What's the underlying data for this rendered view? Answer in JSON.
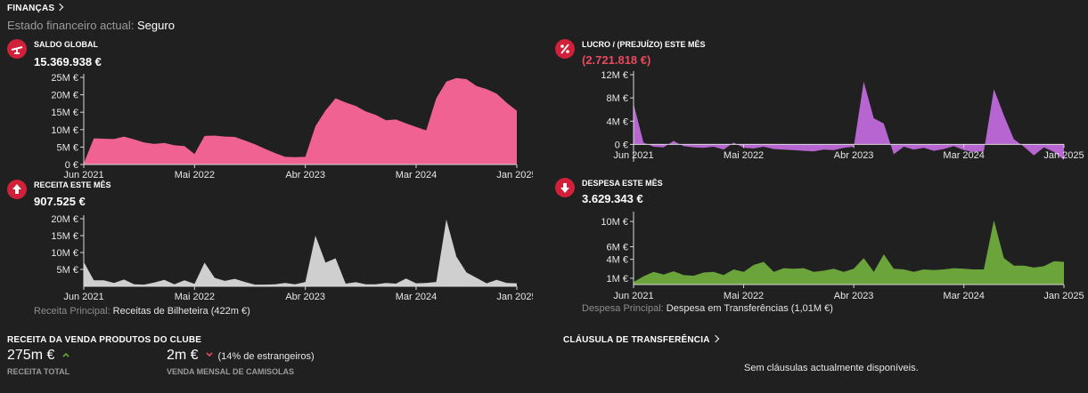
{
  "finance": {
    "title": "FINANÇAS",
    "status_label": "Estado financeiro actual:",
    "status_value": "Seguro"
  },
  "cards": {
    "balance": {
      "label": "SALDO GLOBAL",
      "value": "15.369.938 €"
    },
    "profit": {
      "label": "LUCRO / (PREJUÍZO) ESTE MÊS",
      "value": "(2.721.818 €)"
    },
    "income": {
      "label": "RECEITA ESTE MÊS",
      "value": "907.525 €",
      "footnote_label": "Receita Principal:",
      "footnote_value": "Receitas de Bilheteira (422m €)"
    },
    "expense": {
      "label": "DESPESA ESTE MÊS",
      "value": "3.629.343 €",
      "footnote_label": "Despesa Principal:",
      "footnote_value": "Despesa em Transferências (1,01M €)"
    }
  },
  "merch": {
    "title": "RECEITA DA VENDA PRODUTOS DO CLUBE",
    "total_value": "275m €",
    "total_label": "RECEITA TOTAL",
    "monthly_value": "2m €",
    "monthly_note": "(14% de estrangeiros)",
    "monthly_label": "VENDA MENSAL DE CAMISOLAS"
  },
  "transfer": {
    "title": "CLÁUSULA DE TRANSFERÊNCIA",
    "empty": "Sem cláusulas actualmente disponíveis."
  },
  "colors": {
    "balance": "#f06292",
    "profit": "#b765d0",
    "income": "#cfcfcf",
    "expense": "#6aa43a",
    "badge": "#d0203a"
  },
  "chart_data": [
    {
      "id": "balance",
      "type": "area",
      "x_ticks": [
        "Jun 2021",
        "Mai 2022",
        "Abr 2023",
        "Mar 2024",
        "Jan 2025"
      ],
      "y_ticks": [
        "25M €",
        "20M €",
        "15M €",
        "10M €",
        "5M €",
        "0 €"
      ],
      "ylim": [
        0,
        25000000
      ],
      "x": [
        0,
        1,
        2,
        3,
        4,
        5,
        6,
        7,
        8,
        9,
        10,
        11,
        12,
        13,
        14,
        15,
        16,
        17,
        18,
        19,
        20,
        21,
        22,
        23,
        24,
        25,
        26,
        27,
        28,
        29,
        30,
        31,
        32,
        33,
        34,
        35,
        36,
        37,
        38,
        39,
        40,
        41,
        42,
        43
      ],
      "values": [
        300000,
        7500000,
        7400000,
        7300000,
        8000000,
        7200000,
        6300000,
        5900000,
        6200000,
        5500000,
        5300000,
        3000000,
        8200000,
        8300000,
        8000000,
        7900000,
        6900000,
        5800000,
        4500000,
        3300000,
        2200000,
        2100000,
        2200000,
        11000000,
        15500000,
        19000000,
        17800000,
        16800000,
        15200000,
        14200000,
        12700000,
        12900000,
        11800000,
        10800000,
        9800000,
        19000000,
        23800000,
        24800000,
        24500000,
        22500000,
        21600000,
        20300000,
        17700000,
        15400000
      ]
    },
    {
      "id": "profit",
      "type": "area",
      "x_ticks": [
        "Jun 2021",
        "Mai 2022",
        "Abr 2023",
        "Mar 2024",
        "Jan 2025"
      ],
      "y_ticks": [
        "12M €",
        "8M €",
        "4M €",
        "0 €"
      ],
      "ylim": [
        -3000000,
        12000000
      ],
      "x": [
        0,
        1,
        2,
        3,
        4,
        5,
        6,
        7,
        8,
        9,
        10,
        11,
        12,
        13,
        14,
        15,
        16,
        17,
        18,
        19,
        20,
        21,
        22,
        23,
        24,
        25,
        26,
        27,
        28,
        29,
        30,
        31,
        32,
        33,
        34,
        35,
        36,
        37,
        38,
        39,
        40,
        41,
        42,
        43
      ],
      "values": [
        7000000,
        300000,
        -400000,
        -500000,
        600000,
        -300000,
        -500000,
        -600000,
        -400000,
        -900000,
        300000,
        -600000,
        -700000,
        -400000,
        -800000,
        -900000,
        -1000000,
        -1100000,
        -1200000,
        -900000,
        -1000000,
        -600000,
        -400000,
        10800000,
        4500000,
        3600000,
        -1700000,
        -400000,
        -900000,
        -600000,
        -1100000,
        -800000,
        -300000,
        -1000000,
        -1300000,
        -1200000,
        9500000,
        5000000,
        900000,
        -400000,
        -1900000,
        -500000,
        -1300000,
        -2700000
      ]
    },
    {
      "id": "income",
      "type": "area",
      "x_ticks": [
        "Jun 2021",
        "Mai 2022",
        "Abr 2023",
        "Mar 2024",
        "Jan 2025"
      ],
      "y_ticks": [
        "20M €",
        "15M €",
        "10M €",
        "5M €"
      ],
      "ylim": [
        0,
        20000000
      ],
      "x": [
        0,
        1,
        2,
        3,
        4,
        5,
        6,
        7,
        8,
        9,
        10,
        11,
        12,
        13,
        14,
        15,
        16,
        17,
        18,
        19,
        20,
        21,
        22,
        23,
        24,
        25,
        26,
        27,
        28,
        29,
        30,
        31,
        32,
        33,
        34,
        35,
        36,
        37,
        38,
        39,
        40,
        41,
        42,
        43
      ],
      "values": [
        7200000,
        1800000,
        1800000,
        1000000,
        2000000,
        600000,
        500000,
        1100000,
        1900000,
        600000,
        1800000,
        700000,
        7000000,
        2500000,
        1600000,
        2200000,
        1300000,
        500000,
        500000,
        600000,
        1000000,
        600000,
        1300000,
        15000000,
        7000000,
        8300000,
        800000,
        1200000,
        600000,
        600000,
        1000000,
        800000,
        2300000,
        900000,
        1000000,
        1300000,
        19800000,
        8800000,
        4100000,
        2500000,
        900000,
        1900000,
        1000000,
        900000
      ]
    },
    {
      "id": "expense",
      "type": "area",
      "x_ticks": [
        "Jun 2021",
        "Mai 2022",
        "Abr 2023",
        "Mar 2024",
        "Jan 2025"
      ],
      "y_ticks": [
        "10M €",
        "6M €",
        "4M €",
        "1M €"
      ],
      "ylim": [
        0,
        11000000
      ],
      "x": [
        0,
        1,
        2,
        3,
        4,
        5,
        6,
        7,
        8,
        9,
        10,
        11,
        12,
        13,
        14,
        15,
        16,
        17,
        18,
        19,
        20,
        21,
        22,
        23,
        24,
        25,
        26,
        27,
        28,
        29,
        30,
        31,
        32,
        33,
        34,
        35,
        36,
        37,
        38,
        39,
        40,
        41,
        42,
        43
      ],
      "values": [
        400000,
        1300000,
        2000000,
        1600000,
        2100000,
        1500000,
        1400000,
        1900000,
        2000000,
        1500000,
        2400000,
        2000000,
        3100000,
        3600000,
        2000000,
        2600000,
        2500000,
        2600000,
        2000000,
        2200000,
        2500000,
        2000000,
        2500000,
        4200000,
        2000000,
        4800000,
        2500000,
        2400000,
        2000000,
        2400000,
        2300000,
        2400000,
        2600000,
        2500000,
        2400000,
        2400000,
        10200000,
        4200000,
        3000000,
        3000000,
        2700000,
        2900000,
        3700000,
        3600000
      ]
    }
  ]
}
